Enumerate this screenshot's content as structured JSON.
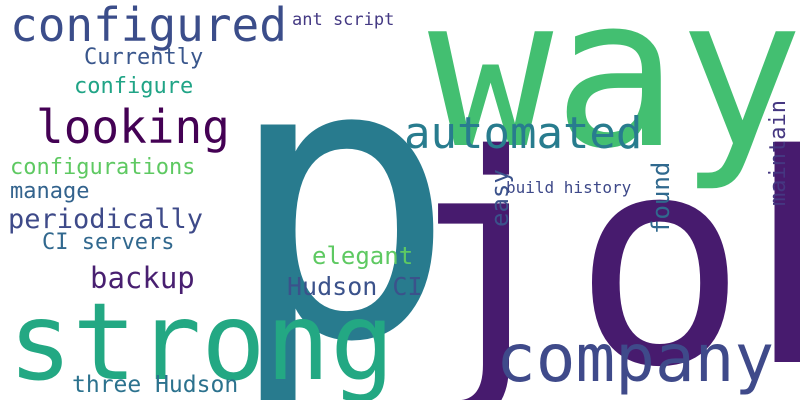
{
  "words": [
    {
      "key": "p",
      "text": "p",
      "color": "#287b8e"
    },
    {
      "key": "way",
      "text": "way",
      "color": "#43bf71"
    },
    {
      "key": "job",
      "text": "job",
      "color": "#471b6e"
    },
    {
      "key": "strong",
      "text": "strong",
      "color": "#23a883"
    },
    {
      "key": "company",
      "text": "company",
      "color": "#3f4a8a"
    },
    {
      "key": "configured",
      "text": "configured",
      "color": "#3b4d8a"
    },
    {
      "key": "looking",
      "text": "looking",
      "color": "#440154"
    },
    {
      "key": "automated",
      "text": "automated",
      "color": "#287c8e"
    },
    {
      "key": "currently",
      "text": "Currently",
      "color": "#39568c"
    },
    {
      "key": "configure",
      "text": "configure",
      "color": "#20a486"
    },
    {
      "key": "configurations",
      "text": "configurations",
      "color": "#5ec962"
    },
    {
      "key": "manage",
      "text": "manage",
      "color": "#33638d"
    },
    {
      "key": "periodically",
      "text": "periodically",
      "color": "#3e4a89"
    },
    {
      "key": "ci-servers",
      "text": "CI servers",
      "color": "#31688e"
    },
    {
      "key": "backup",
      "text": "backup",
      "color": "#481f70"
    },
    {
      "key": "elegant",
      "text": "elegant",
      "color": "#5ec962"
    },
    {
      "key": "hudson-ci",
      "text": "Hudson CI",
      "color": "#3b528b"
    },
    {
      "key": "three-hudson",
      "text": "three Hudson",
      "color": "#2c728e"
    },
    {
      "key": "ant-script",
      "text": "ant script",
      "color": "#443983"
    },
    {
      "key": "build-history",
      "text": "build history",
      "color": "#3e4989"
    },
    {
      "key": "easy",
      "text": "easy",
      "color": "#3b528b"
    },
    {
      "key": "found",
      "text": "found",
      "color": "#30698e"
    },
    {
      "key": "maintain",
      "text": "maintain",
      "color": "#453781"
    }
  ]
}
